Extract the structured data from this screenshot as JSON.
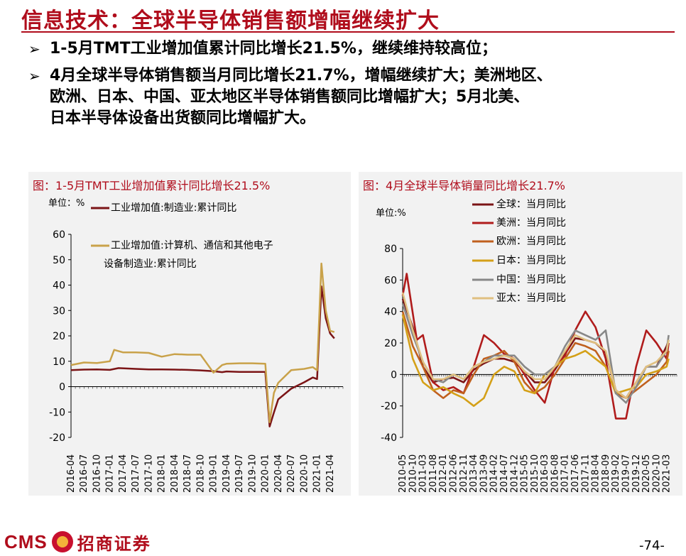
{
  "title": "信息技术：全球半导体销售额增幅继续扩大",
  "bullets": [
    {
      "lines": [
        "1-5月TMT工业增加值累计同比增长21.5%，继续维持较高位；"
      ]
    },
    {
      "lines": [
        "4月全球半导体销售额当月同比增长21.7%，增幅继续扩大；美洲地区、",
        "欧洲、日本、中国、亚太地区半导体销售额同比增幅扩大；5月北美、",
        "日本半导体设备出货额同比增幅扩大。"
      ]
    }
  ],
  "footer": {
    "logo_text": "CMS",
    "logo_cn": "招商证券",
    "page": "-74-"
  },
  "chart_data": [
    {
      "type": "line",
      "panel_title": "图：1-5月TMT工业增加值累计同比增长21.5%",
      "unit_label": "单位：%",
      "ylim": [
        -20,
        60
      ],
      "yticks": [
        -20,
        -10,
        0,
        10,
        20,
        30,
        40,
        50,
        60
      ],
      "x_tick_labels": [
        "2016-04",
        "2016-07",
        "2016-10",
        "2017-01",
        "2017-04",
        "2017-07",
        "2017-10",
        "2018-01",
        "2018-04",
        "2018-07",
        "2018-10",
        "2019-01",
        "2019-04",
        "2019-07",
        "2019-10",
        "2020-01",
        "2020-04",
        "2020-07",
        "2020-10",
        "2021-01",
        "2021-04"
      ],
      "x_start": "2016-04",
      "series": [
        {
          "name": "工业增加值:制造业:累计同比",
          "color": "#7b1416",
          "x": [
            "2016-04",
            "2016-07",
            "2016-10",
            "2017-01",
            "2017-03",
            "2017-07",
            "2017-10",
            "2018-01",
            "2018-04",
            "2018-07",
            "2018-10",
            "2019-01",
            "2019-03",
            "2019-04",
            "2019-07",
            "2019-10",
            "2020-01",
            "2020-02",
            "2020-03",
            "2020-04",
            "2020-07",
            "2020-10",
            "2020-12",
            "2021-01",
            "2021-02",
            "2021-03",
            "2021-04",
            "2021-05"
          ],
          "y": [
            6.5,
            6.7,
            6.8,
            6.6,
            7.3,
            7.0,
            6.8,
            6.8,
            6.7,
            6.6,
            6.4,
            6.1,
            5.7,
            6.0,
            5.8,
            5.8,
            5.8,
            -15.7,
            -10.2,
            -5.0,
            -0.8,
            1.7,
            3.6,
            3.0,
            39.5,
            27.0,
            21.0,
            19.0
          ]
        },
        {
          "name": "工业增加值:计算机、通信和其他电子设备制造业:累计同比",
          "color": "#c9a24a",
          "x": [
            "2016-04",
            "2016-07",
            "2016-10",
            "2017-01",
            "2017-02",
            "2017-04",
            "2017-07",
            "2017-10",
            "2018-01",
            "2018-04",
            "2018-07",
            "2018-10",
            "2019-01",
            "2019-03",
            "2019-04",
            "2019-07",
            "2019-10",
            "2020-01",
            "2020-02",
            "2020-03",
            "2020-04",
            "2020-07",
            "2020-10",
            "2020-12",
            "2021-01",
            "2021-02",
            "2021-03",
            "2021-04",
            "2021-05"
          ],
          "y": [
            8.5,
            9.5,
            9.3,
            10.0,
            14.5,
            13.5,
            13.5,
            13.3,
            11.8,
            12.8,
            12.6,
            12.6,
            5.5,
            8.5,
            9.0,
            9.2,
            9.2,
            9.0,
            -14.0,
            -2.5,
            1.5,
            6.5,
            7.0,
            7.7,
            6.5,
            48.5,
            30.0,
            22.0,
            21.5
          ]
        }
      ]
    },
    {
      "type": "line",
      "panel_title": "图：4月全球半导体销量同比增长21.7%",
      "unit_label": "单位:%",
      "ylim": [
        -40,
        80
      ],
      "yticks": [
        -40,
        -20,
        0,
        20,
        40,
        60,
        80
      ],
      "x_tick_labels": [
        "2010-05",
        "2010-10",
        "2011-03",
        "2011-08",
        "2012-01",
        "2012-06",
        "2012-11",
        "2013-04",
        "2013-09",
        "2014-02",
        "2014-07",
        "2014-12",
        "2015-05",
        "2015-10",
        "2016-03",
        "2016-08",
        "2017-01",
        "2017-06",
        "2017-11",
        "2018-04",
        "2018-09",
        "2019-02",
        "2019-07",
        "2019-12",
        "2020-05",
        "2020-10",
        "2021-03"
      ],
      "x_start": "2010-05",
      "series": [
        {
          "name": "全球：当月同比",
          "color": "#7b1416",
          "x": [
            "2010-05",
            "2010-10",
            "2011-03",
            "2011-08",
            "2012-01",
            "2012-06",
            "2012-11",
            "2013-04",
            "2013-09",
            "2014-02",
            "2014-07",
            "2014-12",
            "2015-05",
            "2015-10",
            "2016-03",
            "2016-08",
            "2017-01",
            "2017-06",
            "2017-11",
            "2018-04",
            "2018-09",
            "2019-02",
            "2019-07",
            "2019-12",
            "2020-05",
            "2020-10",
            "2021-03",
            "2021-04"
          ],
          "y": [
            48,
            30,
            5,
            -5,
            -3,
            -2,
            -5,
            3,
            7,
            10,
            10,
            8,
            2,
            -5,
            -5,
            3,
            13,
            23,
            22,
            20,
            14,
            -10,
            -15,
            -5,
            5,
            5,
            18,
            21.7
          ]
        },
        {
          "name": "美洲：当月同比",
          "color": "#b01c1c",
          "x": [
            "2010-05",
            "2010-07",
            "2010-12",
            "2011-03",
            "2011-08",
            "2012-01",
            "2012-06",
            "2012-11",
            "2013-04",
            "2013-09",
            "2014-02",
            "2014-07",
            "2014-12",
            "2015-05",
            "2015-10",
            "2016-03",
            "2016-08",
            "2017-01",
            "2017-06",
            "2017-11",
            "2018-04",
            "2018-09",
            "2019-02",
            "2019-07",
            "2019-12",
            "2020-05",
            "2020-10",
            "2021-03",
            "2021-04"
          ],
          "y": [
            50,
            64,
            22,
            25,
            -5,
            -10,
            -8,
            -12,
            5,
            25,
            20,
            13,
            10,
            0,
            -10,
            -18,
            5,
            12,
            28,
            40,
            30,
            10,
            -28,
            -28,
            5,
            28,
            20,
            10,
            20
          ]
        },
        {
          "name": "欧洲：当月同比",
          "color": "#c0601e",
          "x": [
            "2010-05",
            "2010-10",
            "2011-03",
            "2011-08",
            "2012-01",
            "2012-06",
            "2012-11",
            "2013-04",
            "2013-09",
            "2014-02",
            "2014-07",
            "2014-12",
            "2015-05",
            "2015-10",
            "2016-03",
            "2016-08",
            "2017-01",
            "2017-06",
            "2017-11",
            "2018-04",
            "2018-09",
            "2019-02",
            "2019-07",
            "2019-12",
            "2020-05",
            "2020-10",
            "2021-03",
            "2021-04"
          ],
          "y": [
            40,
            18,
            5,
            -10,
            -15,
            -10,
            -12,
            0,
            10,
            12,
            15,
            8,
            -5,
            -12,
            -8,
            0,
            10,
            20,
            18,
            15,
            5,
            -12,
            -15,
            -10,
            -5,
            0,
            8,
            15
          ]
        },
        {
          "name": "日本：当月同比",
          "color": "#d4a018",
          "x": [
            "2010-05",
            "2010-10",
            "2011-03",
            "2011-08",
            "2012-01",
            "2012-06",
            "2012-11",
            "2013-04",
            "2013-09",
            "2014-02",
            "2014-07",
            "2014-12",
            "2015-05",
            "2015-10",
            "2016-03",
            "2016-08",
            "2017-01",
            "2017-06",
            "2017-11",
            "2018-04",
            "2018-09",
            "2019-02",
            "2019-07",
            "2019-12",
            "2020-05",
            "2020-10",
            "2021-03",
            "2021-04"
          ],
          "y": [
            38,
            10,
            -5,
            -10,
            -8,
            -12,
            -15,
            -20,
            -15,
            0,
            5,
            2,
            -10,
            -12,
            0,
            5,
            10,
            12,
            15,
            10,
            5,
            -12,
            -10,
            -8,
            0,
            2,
            5,
            10
          ]
        },
        {
          "name": "中国：当月同比",
          "color": "#888888",
          "x": [
            "2010-05",
            "2010-10",
            "2011-03",
            "2011-08",
            "2012-01",
            "2012-06",
            "2012-11",
            "2013-04",
            "2013-09",
            "2014-02",
            "2014-07",
            "2014-12",
            "2015-05",
            "2015-10",
            "2016-03",
            "2016-08",
            "2017-01",
            "2017-06",
            "2017-11",
            "2018-04",
            "2018-09",
            "2019-02",
            "2019-07",
            "2019-12",
            "2020-05",
            "2020-10",
            "2021-03",
            "2021-04"
          ],
          "y": [
            45,
            25,
            8,
            -3,
            -5,
            0,
            -3,
            5,
            8,
            12,
            12,
            12,
            5,
            0,
            0,
            5,
            18,
            28,
            25,
            22,
            28,
            -12,
            -18,
            -8,
            5,
            5,
            15,
            25
          ]
        },
        {
          "name": "亚太：当月同比",
          "color": "#e0c080",
          "x": [
            "2010-05",
            "2010-10",
            "2011-03",
            "2011-08",
            "2012-01",
            "2012-06",
            "2012-11",
            "2013-04",
            "2013-09",
            "2014-02",
            "2014-07",
            "2014-12",
            "2015-05",
            "2015-10",
            "2016-03",
            "2016-08",
            "2017-01",
            "2017-06",
            "2017-11",
            "2018-04",
            "2018-09",
            "2019-02",
            "2019-07",
            "2019-12",
            "2020-05",
            "2020-10",
            "2021-03",
            "2021-04"
          ],
          "y": [
            52,
            28,
            8,
            -3,
            -3,
            0,
            -3,
            5,
            8,
            10,
            12,
            10,
            2,
            -3,
            -3,
            5,
            15,
            25,
            22,
            20,
            15,
            -10,
            -15,
            -5,
            5,
            8,
            15,
            22
          ]
        }
      ]
    }
  ]
}
